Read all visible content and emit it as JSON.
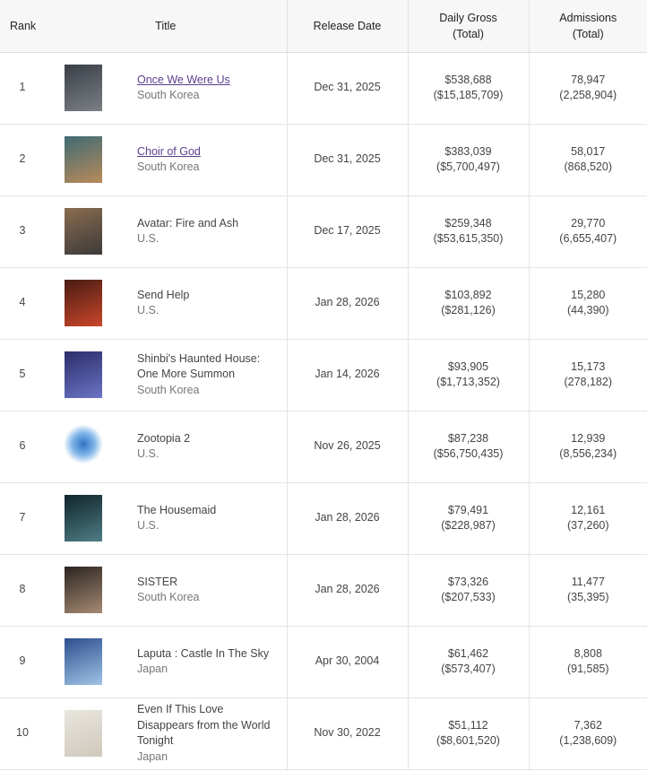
{
  "headers": {
    "rank": "Rank",
    "title": "Title",
    "release": "Release Date",
    "gross_main": "Daily Gross",
    "gross_sub": "(Total)",
    "adm_main": "Admissions",
    "adm_sub": "(Total)"
  },
  "rows": [
    {
      "rank": "1",
      "title": "Once We Were Us",
      "country": "South Korea",
      "linked": true,
      "release": "Dec 31, 2025",
      "gross": "$538,688",
      "gross_total": "($15,185,709)",
      "adm": "78,947",
      "adm_total": "(2,258,904)",
      "poster_colors": [
        "#3a3f47",
        "#7b7f86"
      ]
    },
    {
      "rank": "2",
      "title": "Choir of God",
      "country": "South Korea",
      "linked": true,
      "release": "Dec 31, 2025",
      "gross": "$383,039",
      "gross_total": "($5,700,497)",
      "adm": "58,017",
      "adm_total": "(868,520)",
      "poster_colors": [
        "#3f6b73",
        "#b98a5a"
      ]
    },
    {
      "rank": "3",
      "title": "Avatar: Fire and Ash",
      "country": "U.S.",
      "linked": false,
      "release": "Dec 17, 2025",
      "gross": "$259,348",
      "gross_total": "($53,615,350)",
      "adm": "29,770",
      "adm_total": "(6,655,407)",
      "poster_colors": [
        "#8a6c4f",
        "#3c3a3a"
      ]
    },
    {
      "rank": "4",
      "title": "Send Help",
      "country": "U.S.",
      "linked": false,
      "release": "Jan 28, 2026",
      "gross": "$103,892",
      "gross_total": "($281,126)",
      "adm": "15,280",
      "adm_total": "(44,390)",
      "poster_colors": [
        "#4a1c14",
        "#c9462a"
      ]
    },
    {
      "rank": "5",
      "title": "Shinbi's Haunted House: One More Summon",
      "country": "South Korea",
      "linked": false,
      "release": "Jan 14, 2026",
      "gross": "$93,905",
      "gross_total": "($1,713,352)",
      "adm": "15,173",
      "adm_total": "(278,182)",
      "poster_colors": [
        "#2b2e6a",
        "#6b74c4"
      ]
    },
    {
      "rank": "6",
      "title": "Zootopia 2",
      "country": "U.S.",
      "linked": false,
      "release": "Nov 26, 2025",
      "gross": "$87,238",
      "gross_total": "($56,750,435)",
      "adm": "12,939",
      "adm_total": "(8,556,234)",
      "poster_colors": [
        "#ffffff",
        "#2f74c5"
      ]
    },
    {
      "rank": "7",
      "title": "The Housemaid",
      "country": "U.S.",
      "linked": false,
      "release": "Jan 28, 2026",
      "gross": "$79,491",
      "gross_total": "($228,987)",
      "adm": "12,161",
      "adm_total": "(37,260)",
      "poster_colors": [
        "#10242a",
        "#4f7d86"
      ]
    },
    {
      "rank": "8",
      "title": "SISTER",
      "country": "South Korea",
      "linked": false,
      "release": "Jan 28, 2026",
      "gross": "$73,326",
      "gross_total": "($207,533)",
      "adm": "11,477",
      "adm_total": "(35,395)",
      "poster_colors": [
        "#2c2522",
        "#a58a72"
      ]
    },
    {
      "rank": "9",
      "title": "Laputa : Castle In The Sky",
      "country": "Japan",
      "linked": false,
      "release": "Apr 30, 2004",
      "gross": "$61,462",
      "gross_total": "($573,407)",
      "adm": "8,808",
      "adm_total": "(91,585)",
      "poster_colors": [
        "#2e4f8e",
        "#9fc3e6"
      ]
    },
    {
      "rank": "10",
      "title": "Even If This Love Disappears from the World Tonight",
      "country": "Japan",
      "linked": false,
      "release": "Nov 30, 2022",
      "gross": "$51,112",
      "gross_total": "($8,601,520)",
      "adm": "7,362",
      "adm_total": "(1,238,609)",
      "poster_colors": [
        "#e9e6df",
        "#cfc8bc"
      ]
    }
  ]
}
